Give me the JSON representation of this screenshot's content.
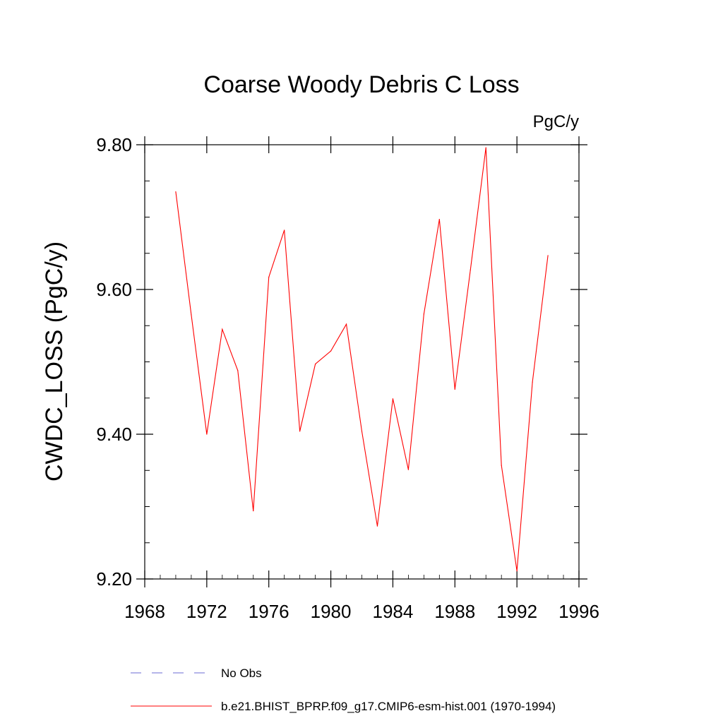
{
  "chart_data": {
    "type": "line",
    "title": "Coarse Woody Debris C Loss",
    "units_label": "PgC/y",
    "xlabel": "",
    "ylabel": "CWDC_LOSS  (PgC/y)",
    "xlim": [
      1968,
      1996
    ],
    "ylim": [
      9.2,
      9.8
    ],
    "x_ticks": [
      1968,
      1972,
      1976,
      1980,
      1984,
      1988,
      1992,
      1996
    ],
    "x_tick_labels": [
      "1968",
      "1972",
      "1976",
      "1980",
      "1984",
      "1988",
      "1992",
      "1996"
    ],
    "y_ticks": [
      9.2,
      9.4,
      9.6,
      9.8
    ],
    "y_tick_labels": [
      "9.20",
      "9.40",
      "9.60",
      "9.80"
    ],
    "grid": false,
    "legend_position": "bottom",
    "series": [
      {
        "name": "b.e21.BHIST_BPRP.f09_g17.CMIP6-esm-hist.001 (1970-1994)",
        "color": "#ff0000",
        "dash": "solid",
        "x": [
          1970,
          1971,
          1972,
          1973,
          1974,
          1975,
          1976,
          1977,
          1978,
          1979,
          1980,
          1981,
          1982,
          1983,
          1984,
          1985,
          1986,
          1987,
          1988,
          1989,
          1990,
          1991,
          1992,
          1993,
          1994
        ],
        "y": [
          9.735,
          9.565,
          9.4,
          9.545,
          9.488,
          9.294,
          9.617,
          9.682,
          9.404,
          9.497,
          9.515,
          9.552,
          9.404,
          9.273,
          9.449,
          9.351,
          9.566,
          9.697,
          9.462,
          9.627,
          9.796,
          9.357,
          9.211,
          9.472,
          9.647
        ]
      }
    ],
    "legend": [
      {
        "label": "No Obs",
        "color": "#6b6bd6",
        "dash": "dashed"
      },
      {
        "label": "b.e21.BHIST_BPRP.f09_g17.CMIP6-esm-hist.001 (1970-1994)",
        "color": "#ff0000",
        "dash": "solid"
      }
    ]
  }
}
